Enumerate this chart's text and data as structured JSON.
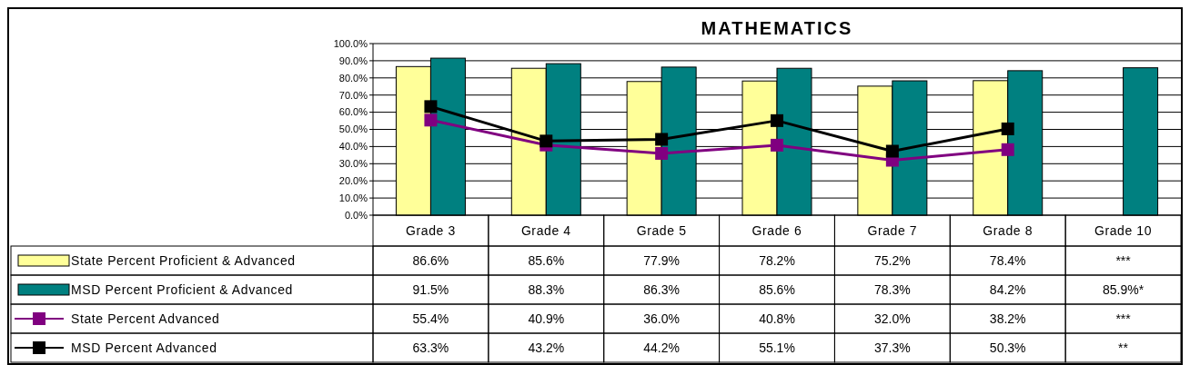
{
  "chart_data": {
    "type": "bar",
    "title": "MATHEMATICS",
    "categories": [
      "Grade 3",
      "Grade 4",
      "Grade 5",
      "Grade 6",
      "Grade 7",
      "Grade 8",
      "Grade 10"
    ],
    "series": [
      {
        "name": "State Percent Proficient & Advanced",
        "color": "#ffff99",
        "values": [
          86.6,
          85.6,
          77.9,
          78.2,
          75.2,
          78.4,
          null
        ],
        "value_labels": [
          "86.6%",
          "85.6%",
          "77.9%",
          "78.2%",
          "75.2%",
          "78.4%",
          "***"
        ]
      },
      {
        "name": "MSD Percent Proficient & Advanced",
        "color": "#008080",
        "values": [
          91.5,
          88.3,
          86.3,
          85.6,
          78.3,
          84.2,
          85.9
        ],
        "value_labels": [
          "91.5%",
          "88.3%",
          "86.3%",
          "85.6%",
          "78.3%",
          "84.2%",
          "85.9%*"
        ]
      },
      {
        "name": "State Percent Advanced",
        "type": "line",
        "color": "#800080",
        "values": [
          55.4,
          40.9,
          36.0,
          40.8,
          32.0,
          38.2,
          null
        ],
        "value_labels": [
          "55.4%",
          "40.9%",
          "36.0%",
          "40.8%",
          "32.0%",
          "38.2%",
          "***"
        ]
      },
      {
        "name": "MSD Percent Advanced",
        "type": "line",
        "color": "#000000",
        "values": [
          63.3,
          43.2,
          44.2,
          55.1,
          37.3,
          50.3,
          null
        ],
        "value_labels": [
          "63.3%",
          "43.2%",
          "44.2%",
          "55.1%",
          "37.3%",
          "50.3%",
          "**"
        ]
      }
    ],
    "ylim": [
      0,
      100
    ],
    "yticks": [
      {
        "value": 0,
        "label": "0.0%"
      },
      {
        "value": 10,
        "label": "10.0%"
      },
      {
        "value": 20,
        "label": "20.0%"
      },
      {
        "value": 30,
        "label": "30.0%"
      },
      {
        "value": 40,
        "label": "40.0%"
      },
      {
        "value": 50,
        "label": "50.0%"
      },
      {
        "value": 60,
        "label": "60.0%"
      },
      {
        "value": 70,
        "label": "70.0%"
      },
      {
        "value": 80,
        "label": "80.0%"
      },
      {
        "value": 90,
        "label": "90.0%"
      },
      {
        "value": 100,
        "label": "100.0%"
      }
    ],
    "grid": "y",
    "legend": "bottom left",
    "marker": "square",
    "line_style": "solid"
  }
}
